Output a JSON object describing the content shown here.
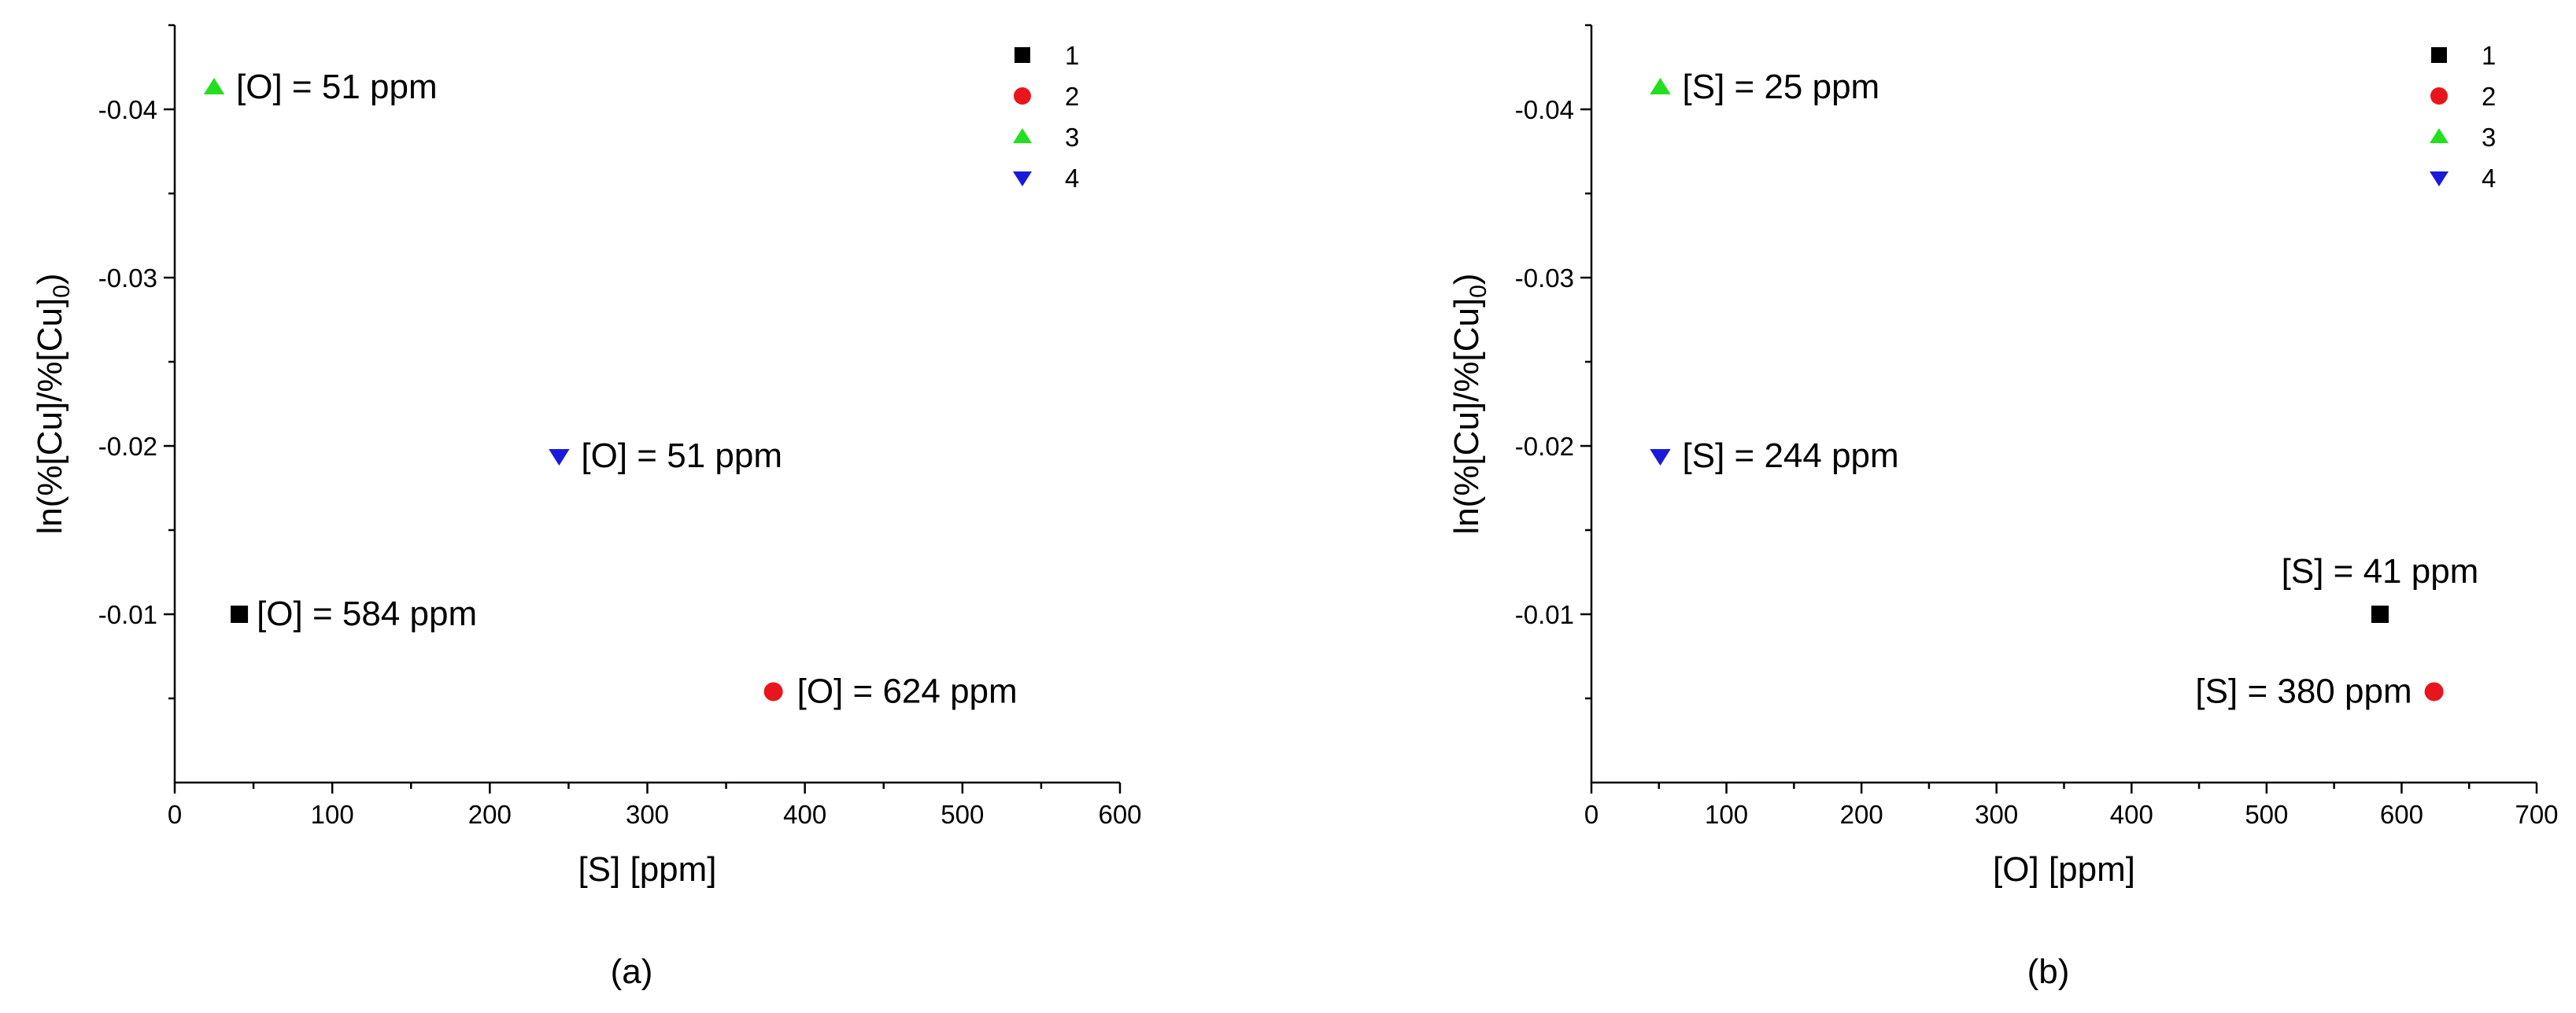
{
  "chart_data": [
    {
      "type": "scatter",
      "panel_label": "(a)",
      "xlabel": "[S] [ppm]",
      "ylabel": "ln(%[Cu]/%[Cu]",
      "ylabel_sub": "0",
      "ylabel_close": ")",
      "xlim": [
        0,
        600
      ],
      "ylim": [
        -0.045,
        0
      ],
      "y_inverted": true,
      "x_ticks": [
        0,
        100,
        200,
        300,
        400,
        500,
        600
      ],
      "x_tick_labels": [
        "0",
        "100",
        "200",
        "300",
        "400",
        "500",
        "600"
      ],
      "y_ticks": [
        -0.04,
        -0.03,
        -0.02,
        -0.01
      ],
      "y_tick_labels": [
        "-0.04",
        "-0.03",
        "-0.02",
        "-0.01"
      ],
      "legend": {
        "placement": "top-right",
        "entries": [
          "1",
          "2",
          "3",
          "4"
        ]
      },
      "series": [
        {
          "name": "1",
          "marker": "square",
          "color": "#000000",
          "points": [
            {
              "x": 41,
              "y": -0.01,
              "label": "[O] = 584 ppm"
            }
          ]
        },
        {
          "name": "2",
          "marker": "circle",
          "color": "#e8161c",
          "points": [
            {
              "x": 380,
              "y": -0.0054,
              "label": "[O] = 624 ppm"
            }
          ]
        },
        {
          "name": "3",
          "marker": "triangle-up",
          "color": "#22e01e",
          "points": [
            {
              "x": 25,
              "y": -0.0413,
              "label": "[O] = 51 ppm"
            }
          ]
        },
        {
          "name": "4",
          "marker": "triangle-down",
          "color": "#1a1adc",
          "points": [
            {
              "x": 244,
              "y": -0.0194,
              "label": "[O] = 51 ppm"
            }
          ]
        }
      ]
    },
    {
      "type": "scatter",
      "panel_label": "(b)",
      "xlabel": "[O] [ppm]",
      "ylabel": "ln(%[Cu]/%[Cu]",
      "ylabel_sub": "0",
      "ylabel_close": ")",
      "xlim": [
        0,
        700
      ],
      "ylim": [
        -0.045,
        0
      ],
      "y_inverted": true,
      "x_ticks": [
        0,
        100,
        200,
        300,
        400,
        500,
        600,
        700
      ],
      "x_tick_labels": [
        "0",
        "100",
        "200",
        "300",
        "400",
        "500",
        "600",
        "700"
      ],
      "y_ticks": [
        -0.04,
        -0.03,
        -0.02,
        -0.01
      ],
      "y_tick_labels": [
        "-0.04",
        "-0.03",
        "-0.02",
        "-0.01"
      ],
      "legend": {
        "placement": "top-right",
        "entries": [
          "1",
          "2",
          "3",
          "4"
        ]
      },
      "series": [
        {
          "name": "1",
          "marker": "square",
          "color": "#000000",
          "points": [
            {
              "x": 584,
              "y": -0.01,
              "label": "[S] = 41 ppm"
            }
          ]
        },
        {
          "name": "2",
          "marker": "circle",
          "color": "#e8161c",
          "points": [
            {
              "x": 624,
              "y": -0.0054,
              "label": "[S] = 380 ppm"
            }
          ]
        },
        {
          "name": "3",
          "marker": "triangle-up",
          "color": "#22e01e",
          "points": [
            {
              "x": 51,
              "y": -0.0413,
              "label": "[S] = 25 ppm"
            }
          ]
        },
        {
          "name": "4",
          "marker": "triangle-down",
          "color": "#1a1adc",
          "points": [
            {
              "x": 51,
              "y": -0.0194,
              "label": "[S] = 244 ppm"
            }
          ]
        }
      ]
    }
  ]
}
